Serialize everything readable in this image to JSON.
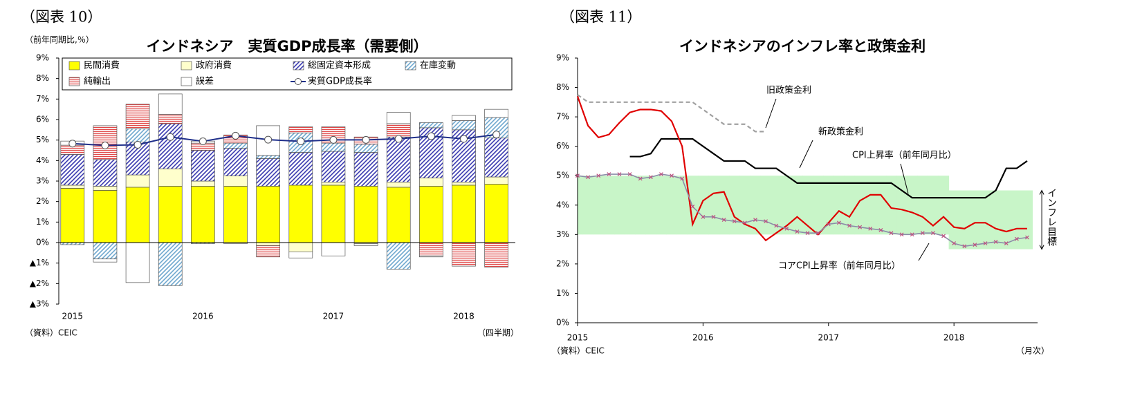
{
  "chart_data": [
    {
      "type": "bar",
      "stacked": true,
      "figure_label": "（図表 10）",
      "title": "インドネシア　実質GDP成長率（需要側）",
      "ylabel": "（前年同期比,％）",
      "source": "（資料）CEIC",
      "xlabel": "（四半期）",
      "categories": [
        "2015",
        null,
        null,
        null,
        "2016",
        null,
        null,
        null,
        "2017",
        null,
        null,
        null,
        "2018",
        null
      ],
      "ylim": [
        -3,
        9
      ],
      "yticks": [
        {
          "value": 9,
          "label": "9%"
        },
        {
          "value": 8,
          "label": "8%"
        },
        {
          "value": 7,
          "label": "7%"
        },
        {
          "value": 6,
          "label": "6%"
        },
        {
          "value": 5,
          "label": "5%"
        },
        {
          "value": 4,
          "label": "4%"
        },
        {
          "value": 3,
          "label": "3%"
        },
        {
          "value": 2,
          "label": "2%"
        },
        {
          "value": 1,
          "label": "1%"
        },
        {
          "value": 0,
          "label": "0%"
        },
        {
          "value": -1,
          "label": "▲1%"
        },
        {
          "value": -2,
          "label": "▲2%"
        },
        {
          "value": -3,
          "label": "▲3%"
        }
      ],
      "series": [
        {
          "name": "民間消費",
          "color": "#ffff00",
          "hatch": null,
          "values": [
            2.65,
            2.55,
            2.7,
            2.75,
            2.75,
            2.75,
            2.75,
            2.8,
            2.8,
            2.75,
            2.7,
            2.75,
            2.8,
            2.85
          ]
        },
        {
          "name": "政府消費",
          "color": "#ffffcc",
          "hatch": null,
          "values": [
            0.15,
            0.2,
            0.6,
            0.85,
            0.25,
            0.5,
            -0.15,
            -0.45,
            0.15,
            -0.05,
            0.25,
            0.4,
            0.15,
            0.35
          ]
        },
        {
          "name": "総固定資本形成",
          "color": "#3a3ab0",
          "hatch": "diagonal",
          "values": [
            1.5,
            1.3,
            1.6,
            2.2,
            1.5,
            1.35,
            1.35,
            1.6,
            1.5,
            1.65,
            2.2,
            2.45,
            2.55,
            1.9
          ]
        },
        {
          "name": "在庫変動",
          "color": "#6fa8cf",
          "hatch": "diagonal",
          "values": [
            -0.1,
            -0.8,
            0.65,
            -2.1,
            -0.05,
            0.25,
            0.15,
            0.95,
            0.4,
            0.4,
            -1.3,
            0.25,
            0.45,
            1.0
          ]
        },
        {
          "name": "純輸出",
          "color": "#e04848",
          "hatch": "horizontal",
          "values": [
            0.45,
            1.65,
            1.2,
            0.45,
            0.35,
            0.4,
            -0.55,
            0.3,
            0.8,
            0.35,
            0.65,
            -0.65,
            -1.15,
            -1.2
          ]
        },
        {
          "name": "誤差",
          "color": "#ffffff",
          "hatch": null,
          "values": [
            0.2,
            -0.15,
            -1.95,
            1.0,
            0.1,
            -0.05,
            1.45,
            -0.3,
            -0.65,
            -0.1,
            0.55,
            -0.05,
            0.25,
            0.4
          ]
        },
        {
          "name": "実質GDP成長率",
          "type": "line",
          "color": "#1f2f8a",
          "values": [
            4.83,
            4.74,
            4.77,
            5.15,
            4.94,
            5.21,
            5.02,
            4.94,
            5.01,
            5.01,
            5.06,
            5.19,
            5.06,
            5.27
          ]
        }
      ]
    },
    {
      "type": "line",
      "figure_label": "（図表 11）",
      "title": "インドネシアのインフレ率と政策金利",
      "source": "（資料）CEIC",
      "xlabel": "（月次）",
      "categories": [
        "2015",
        null,
        null,
        null,
        null,
        null,
        null,
        null,
        null,
        null,
        null,
        null,
        "2016",
        null,
        null,
        null,
        null,
        null,
        null,
        null,
        null,
        null,
        null,
        null,
        "2017",
        null,
        null,
        null,
        null,
        null,
        null,
        null,
        null,
        null,
        null,
        null,
        "2018",
        null,
        null,
        null,
        null,
        null,
        null,
        null
      ],
      "ylim": [
        0,
        9
      ],
      "yticks": [
        {
          "value": 0,
          "label": "0%"
        },
        {
          "value": 1,
          "label": "1%"
        },
        {
          "value": 2,
          "label": "2%"
        },
        {
          "value": 3,
          "label": "3%"
        },
        {
          "value": 4,
          "label": "4%"
        },
        {
          "value": 5,
          "label": "5%"
        },
        {
          "value": 6,
          "label": "6%"
        },
        {
          "value": 7,
          "label": "7%"
        },
        {
          "value": 8,
          "label": "8%"
        },
        {
          "value": 9,
          "label": "9%"
        }
      ],
      "band": {
        "name": "インフレ目標",
        "color": "#c8f5c8",
        "lower": [
          3,
          3,
          3,
          3,
          3,
          3,
          3,
          3,
          3,
          3,
          3,
          3,
          3,
          3,
          3,
          3,
          3,
          3,
          3,
          3,
          3,
          3,
          3,
          3,
          3,
          3,
          3,
          3,
          3,
          3,
          3,
          3,
          3,
          3,
          3,
          3,
          2.5,
          2.5,
          2.5,
          2.5,
          2.5,
          2.5,
          2.5,
          2.5
        ],
        "upper": [
          5,
          5,
          5,
          5,
          5,
          5,
          5,
          5,
          5,
          5,
          5,
          5,
          5,
          5,
          5,
          5,
          5,
          5,
          5,
          5,
          5,
          5,
          5,
          5,
          5,
          5,
          5,
          5,
          5,
          5,
          5,
          5,
          5,
          5,
          5,
          5,
          4.5,
          4.5,
          4.5,
          4.5,
          4.5,
          4.5,
          4.5,
          4.5
        ]
      },
      "series": [
        {
          "name": "旧政策金利",
          "color": "#a0a0a0",
          "dashed": true,
          "values": [
            7.75,
            7.5,
            7.5,
            7.5,
            7.5,
            7.5,
            7.5,
            7.5,
            7.5,
            7.5,
            7.5,
            7.5,
            7.25,
            7.0,
            6.75,
            6.75,
            6.75,
            6.5,
            6.5,
            null,
            null,
            null,
            null,
            null,
            null,
            null,
            null,
            null,
            null,
            null,
            null,
            null,
            null,
            null,
            null,
            null,
            null,
            null,
            null,
            null,
            null,
            null,
            null,
            null
          ]
        },
        {
          "name": "新政策金利",
          "color": "#000000",
          "values": [
            null,
            null,
            null,
            null,
            null,
            5.65,
            5.65,
            5.75,
            6.25,
            6.25,
            6.25,
            6.25,
            6.0,
            5.75,
            5.5,
            5.5,
            5.5,
            5.25,
            5.25,
            5.25,
            5.0,
            4.75,
            4.75,
            4.75,
            4.75,
            4.75,
            4.75,
            4.75,
            4.75,
            4.75,
            4.75,
            4.5,
            4.25,
            4.25,
            4.25,
            4.25,
            4.25,
            4.25,
            4.25,
            4.25,
            4.5,
            5.25,
            5.25,
            5.5
          ]
        },
        {
          "name": "CPI上昇率（前年同月比）",
          "color": "#e00000",
          "values": [
            7.7,
            6.7,
            6.3,
            6.4,
            6.8,
            7.15,
            7.25,
            7.25,
            7.2,
            6.85,
            6.0,
            3.35,
            4.15,
            4.4,
            4.45,
            3.6,
            3.35,
            3.2,
            2.8,
            3.05,
            3.3,
            3.6,
            3.3,
            3.0,
            3.4,
            3.8,
            3.6,
            4.15,
            4.35,
            4.35,
            3.9,
            3.85,
            3.75,
            3.6,
            3.3,
            3.6,
            3.25,
            3.2,
            3.4,
            3.4,
            3.2,
            3.1,
            3.2,
            3.2
          ]
        },
        {
          "name": "コアCPI上昇率（前年同月比）",
          "color": "#8c8ca8",
          "marker_color": "#c05080",
          "values": [
            5.0,
            4.95,
            5.0,
            5.05,
            5.05,
            5.05,
            4.9,
            4.95,
            5.05,
            5.0,
            4.9,
            3.95,
            3.6,
            3.6,
            3.5,
            3.45,
            3.4,
            3.5,
            3.45,
            3.3,
            3.2,
            3.1,
            3.05,
            3.05,
            3.35,
            3.4,
            3.3,
            3.25,
            3.2,
            3.15,
            3.05,
            3.0,
            3.0,
            3.05,
            3.05,
            2.95,
            2.7,
            2.6,
            2.65,
            2.7,
            2.75,
            2.7,
            2.85,
            2.9
          ]
        }
      ]
    }
  ]
}
